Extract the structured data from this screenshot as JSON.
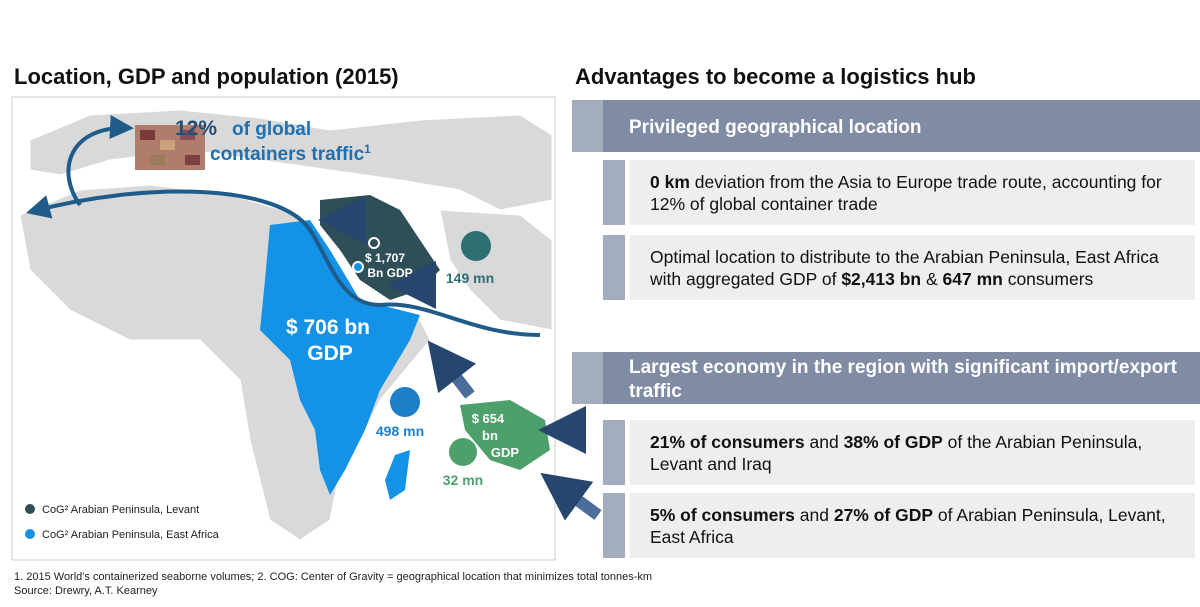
{
  "left": {
    "title": "Location, GDP and population (2015)",
    "traffic": {
      "percent": "12%",
      "line1": "of global",
      "line2": "containers traffic",
      "sup": "1"
    },
    "levant_gdp": [
      "$ 1,707",
      "Bn GDP"
    ],
    "levant_pop": "149 mn",
    "africa_gdp": [
      "$ 706 bn",
      "GDP"
    ],
    "africa_pop": "498 mn",
    "ksa_gdp": [
      "$ 654",
      "bn",
      "GDP"
    ],
    "ksa_pop": "32 mn",
    "legend": [
      "CoG² Arabian Peninsula, Levant",
      "CoG² Arabian Peninsula, East Africa"
    ]
  },
  "right": {
    "title": "Advantages to become a logistics hub",
    "sections": [
      {
        "header": "Privileged geographical location",
        "items": [
          [
            {
              "text": "0 km",
              "bold": true
            },
            {
              "text": " deviation from the Asia to Europe trade route, accounting for 12% of global container trade",
              "bold": false
            }
          ],
          [
            {
              "text": "Optimal location to distribute to the Arabian Peninsula, East Africa with aggregated GDP of ",
              "bold": false
            },
            {
              "text": "$2,413 bn",
              "bold": true
            },
            {
              "text": " & ",
              "bold": false
            },
            {
              "text": "647 mn",
              "bold": true
            },
            {
              "text": " consumers",
              "bold": false
            }
          ]
        ]
      },
      {
        "header": "Largest economy in the region with significant import/export traffic",
        "items": [
          [
            {
              "text": "21% of consumers",
              "bold": true
            },
            {
              "text": " and ",
              "bold": false
            },
            {
              "text": "38% of GDP",
              "bold": true
            },
            {
              "text": " of the Arabian Peninsula, Levant and Iraq",
              "bold": false
            }
          ],
          [
            {
              "text": "5% of consumers",
              "bold": true
            },
            {
              "text": " and ",
              "bold": false
            },
            {
              "text": "27% of GDP",
              "bold": true
            },
            {
              "text": " of Arabian Peninsula, Levant, East Africa",
              "bold": false
            }
          ]
        ]
      }
    ]
  },
  "footnotes": [
    "1. 2015 World's containerized seaborne volumes;  2. COG: Center of Gravity = geographical location that minimizes total tonnes-km",
    "Source: Drewry, A.T. Kearney"
  ]
}
